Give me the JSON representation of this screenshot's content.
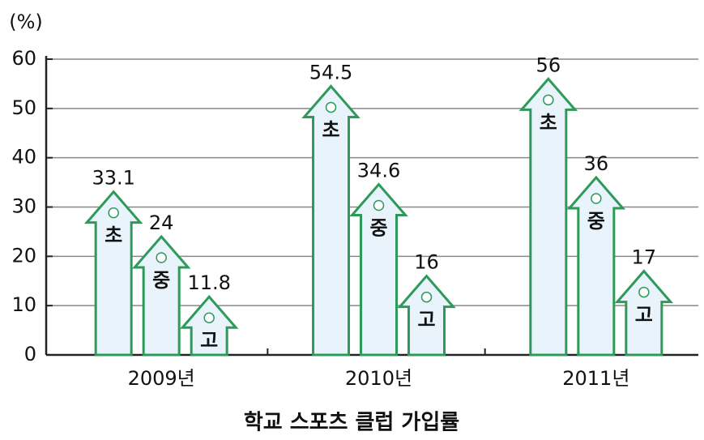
{
  "chart_data": {
    "type": "arrow-bar",
    "title": "학교 스포츠 클럽 가입률",
    "y_unit": "(%)",
    "categories": [
      "2009년",
      "2010년",
      "2011년"
    ],
    "series": [
      {
        "name": "초",
        "color": "#2e9a5a",
        "values": [
          33.1,
          54.5,
          56
        ]
      },
      {
        "name": "중",
        "color": "#2e9a5a",
        "values": [
          24,
          34.6,
          36
        ]
      },
      {
        "name": "고",
        "color": "#2e9a5a",
        "values": [
          11.8,
          16,
          17
        ]
      }
    ],
    "ylim": [
      0,
      60
    ],
    "yticks": [
      0,
      10,
      20,
      30,
      40,
      50,
      60
    ],
    "grid": true
  }
}
